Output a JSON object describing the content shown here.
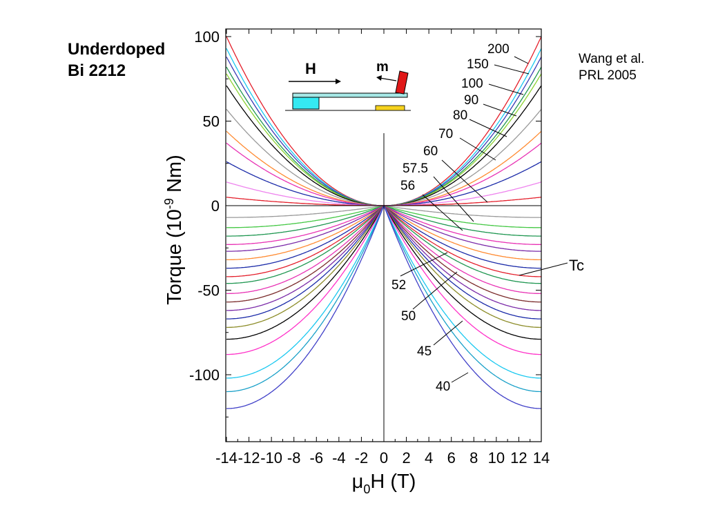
{
  "slide": {
    "sample_title": [
      "Underdoped",
      "Bi 2212"
    ],
    "reference": [
      "Wang et al.",
      "PRL 2005"
    ]
  },
  "inset": {
    "field_label": "H",
    "moment_label": "m",
    "colors": {
      "cantilever": "#a6e8e6",
      "base": "#35e9f2",
      "sample": "#e01818",
      "pad": "#f5d21e"
    }
  },
  "chart_data": {
    "type": "line",
    "xlabel": "μ0H (T)",
    "ylabel": "Torque (10^-9 Nm)",
    "xlim": [
      -14,
      14
    ],
    "ylim": [
      -140,
      103
    ],
    "xticks": [
      -14,
      -12,
      -10,
      -8,
      -6,
      -4,
      -2,
      0,
      2,
      4,
      6,
      8,
      10,
      12,
      14
    ],
    "yticks": [
      100,
      50,
      0,
      -50,
      -100
    ],
    "grid": false,
    "zero_lines": true,
    "series": [
      {
        "name": "200",
        "color": "#e41e2a",
        "values": [
          [
            -14,
            100
          ],
          [
            0,
            0
          ],
          [
            14,
            100
          ]
        ]
      },
      {
        "name": "150",
        "color": "#19c8f0",
        "values": [
          [
            -14,
            93
          ],
          [
            0,
            0
          ],
          [
            14,
            93
          ]
        ]
      },
      {
        "name": "100",
        "color": "#3a3ab4",
        "values": [
          [
            -14,
            88
          ],
          [
            0,
            0
          ],
          [
            14,
            88
          ]
        ]
      },
      {
        "name": "90",
        "color": "#1e9650",
        "values": [
          [
            -14,
            82
          ],
          [
            0,
            0
          ],
          [
            14,
            82
          ]
        ]
      },
      {
        "name": "80",
        "color": "#8cd230",
        "values": [
          [
            -14,
            78
          ],
          [
            0,
            0
          ],
          [
            14,
            78
          ]
        ]
      },
      {
        "name": "70",
        "color": "#000000",
        "values": [
          [
            -14,
            71
          ],
          [
            0,
            0
          ],
          [
            14,
            71
          ]
        ]
      },
      {
        "name": "",
        "color": "#999999",
        "values": [
          [
            -14,
            57
          ],
          [
            0,
            0
          ],
          [
            14,
            57
          ]
        ]
      },
      {
        "name": "",
        "color": "#ff8a30",
        "values": [
          [
            -14,
            44
          ],
          [
            0,
            0
          ],
          [
            14,
            44
          ]
        ]
      },
      {
        "name": "60",
        "color": "#e832b4",
        "values": [
          [
            -14,
            37
          ],
          [
            0,
            0
          ],
          [
            14,
            37
          ]
        ]
      },
      {
        "name": "",
        "color": "#1a2aa8",
        "values": [
          [
            -14,
            26
          ],
          [
            0,
            0
          ],
          [
            14,
            26
          ]
        ]
      },
      {
        "name": "57.5",
        "color": "#ee82ee",
        "values": [
          [
            -14,
            14
          ],
          [
            0,
            0
          ],
          [
            14,
            14
          ]
        ]
      },
      {
        "name": "56",
        "color": "#e41e2a",
        "values": [
          [
            -14,
            5
          ],
          [
            0,
            0
          ],
          [
            14,
            5
          ]
        ]
      },
      {
        "name": "",
        "color": "#999999",
        "values": [
          [
            -14,
            -7
          ],
          [
            0,
            0
          ],
          [
            14,
            -7
          ]
        ]
      },
      {
        "name": "",
        "color": "#44c844",
        "values": [
          [
            -14,
            -13
          ],
          [
            0,
            0
          ],
          [
            14,
            -13
          ]
        ]
      },
      {
        "name": "",
        "color": "#1e9650",
        "values": [
          [
            -14,
            -18
          ],
          [
            0,
            0
          ],
          [
            14,
            -18
          ]
        ]
      },
      {
        "name": "",
        "color": "#e832b4",
        "values": [
          [
            -14,
            -23
          ],
          [
            0,
            0
          ],
          [
            14,
            -23
          ]
        ]
      },
      {
        "name": "52",
        "color": "#7a2aa8",
        "values": [
          [
            -14,
            -27
          ],
          [
            0,
            0
          ],
          [
            14,
            -27
          ]
        ]
      },
      {
        "name": "",
        "color": "#ff8a30",
        "values": [
          [
            -14,
            -32
          ],
          [
            0,
            0
          ],
          [
            14,
            -32
          ]
        ]
      },
      {
        "name": "",
        "color": "#1a2aa8",
        "values": [
          [
            -14,
            -37
          ],
          [
            0,
            0
          ],
          [
            14,
            -37
          ]
        ]
      },
      {
        "name": "Tc",
        "color": "#e41e2a",
        "values": [
          [
            -14,
            -42
          ],
          [
            0,
            0
          ],
          [
            14,
            -42
          ]
        ]
      },
      {
        "name": "50",
        "color": "#1e9650",
        "values": [
          [
            -14,
            -46
          ],
          [
            0,
            0
          ],
          [
            14,
            -46
          ]
        ]
      },
      {
        "name": "",
        "color": "#e832b4",
        "values": [
          [
            -14,
            -52
          ],
          [
            0,
            0
          ],
          [
            14,
            -52
          ]
        ]
      },
      {
        "name": "",
        "color": "#7a2a2a",
        "values": [
          [
            -14,
            -57
          ],
          [
            0,
            0
          ],
          [
            14,
            -57
          ]
        ]
      },
      {
        "name": "",
        "color": "#7a2aa8",
        "values": [
          [
            -14,
            -62
          ],
          [
            0,
            0
          ],
          [
            14,
            -62
          ]
        ]
      },
      {
        "name": "",
        "color": "#1a2aa8",
        "values": [
          [
            -14,
            -67
          ],
          [
            0,
            0
          ],
          [
            14,
            -67
          ]
        ]
      },
      {
        "name": "45",
        "color": "#8c8c28",
        "values": [
          [
            -14,
            -72
          ],
          [
            0,
            0
          ],
          [
            14,
            -72
          ]
        ]
      },
      {
        "name": "",
        "color": "#000000",
        "values": [
          [
            -14,
            -79
          ],
          [
            0,
            0
          ],
          [
            14,
            -79
          ]
        ]
      },
      {
        "name": "",
        "color": "#ff30c8",
        "values": [
          [
            -14,
            -88
          ],
          [
            0,
            0
          ],
          [
            14,
            -88
          ]
        ]
      },
      {
        "name": "",
        "color": "#19c8f0",
        "values": [
          [
            -14,
            -102
          ],
          [
            0,
            0
          ],
          [
            14,
            -102
          ]
        ]
      },
      {
        "name": "",
        "color": "#19a0c8",
        "values": [
          [
            -14,
            -110
          ],
          [
            0,
            0
          ],
          [
            14,
            -110
          ]
        ]
      },
      {
        "name": "40",
        "color": "#4040c8",
        "values": [
          [
            -14,
            -120
          ],
          [
            0,
            0
          ],
          [
            14,
            -120
          ]
        ]
      }
    ],
    "curve_profile": [
      {
        "name": "200",
        "min_x": 0,
        "min_y": 0
      },
      {
        "name": "56",
        "min_x": 7,
        "min_y": -4
      },
      {
        "name": "Tc",
        "min_x": 12,
        "min_y": -44
      },
      {
        "name": "40",
        "min_x": 13,
        "min_y": -120
      }
    ],
    "annotations": [
      "200",
      "150",
      "100",
      "90",
      "80",
      "70",
      "60",
      "57.5",
      "56",
      "52",
      "50",
      "45",
      "40",
      "Tc"
    ]
  }
}
